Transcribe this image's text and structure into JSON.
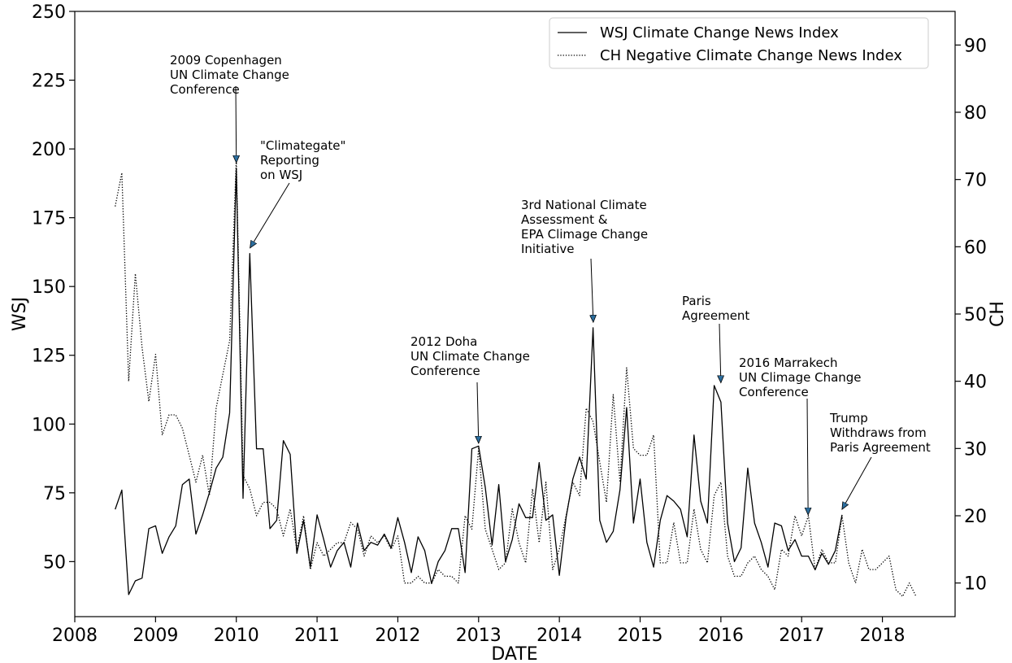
{
  "chart_data": {
    "type": "line",
    "xlabel": "DATE",
    "ylabel_left": "WSJ",
    "ylabel_right": "CH",
    "xlim": [
      2008.0,
      2018.9
    ],
    "ylim_left": [
      30,
      250
    ],
    "ylim_right": [
      5,
      95
    ],
    "x_ticks": [
      "2008",
      "2009",
      "2010",
      "2011",
      "2012",
      "2013",
      "2014",
      "2015",
      "2016",
      "2017",
      "2018"
    ],
    "y_left_ticks": [
      "50",
      "75",
      "100",
      "125",
      "150",
      "175",
      "200",
      "225",
      "250"
    ],
    "y_right_ticks": [
      "10",
      "20",
      "30",
      "40",
      "50",
      "60",
      "70",
      "80",
      "90"
    ],
    "grid": false,
    "legend_position": "top-right",
    "series": [
      {
        "name": "WSJ Climate Change News Index",
        "axis": "left",
        "style": "solid",
        "color": "#000000",
        "x": [
          2008.5,
          2008.583,
          2008.667,
          2008.75,
          2008.833,
          2008.917,
          2009.0,
          2009.083,
          2009.167,
          2009.25,
          2009.333,
          2009.417,
          2009.5,
          2009.583,
          2009.667,
          2009.75,
          2009.833,
          2009.917,
          2010.0,
          2010.083,
          2010.167,
          2010.25,
          2010.333,
          2010.417,
          2010.5,
          2010.583,
          2010.667,
          2010.75,
          2010.833,
          2010.917,
          2011.0,
          2011.083,
          2011.167,
          2011.25,
          2011.333,
          2011.417,
          2011.5,
          2011.583,
          2011.667,
          2011.75,
          2011.833,
          2011.917,
          2012.0,
          2012.083,
          2012.167,
          2012.25,
          2012.333,
          2012.417,
          2012.5,
          2012.583,
          2012.667,
          2012.75,
          2012.833,
          2012.917,
          2013.0,
          2013.083,
          2013.167,
          2013.25,
          2013.333,
          2013.417,
          2013.5,
          2013.583,
          2013.667,
          2013.75,
          2013.833,
          2013.917,
          2014.0,
          2014.083,
          2014.167,
          2014.25,
          2014.333,
          2014.417,
          2014.5,
          2014.583,
          2014.667,
          2014.75,
          2014.833,
          2014.917,
          2015.0,
          2015.083,
          2015.167,
          2015.25,
          2015.333,
          2015.417,
          2015.5,
          2015.583,
          2015.667,
          2015.75,
          2015.833,
          2015.917,
          2016.0,
          2016.083,
          2016.167,
          2016.25,
          2016.333,
          2016.417,
          2016.5,
          2016.583,
          2016.667,
          2016.75,
          2016.833,
          2016.917,
          2017.0,
          2017.083,
          2017.167,
          2017.25,
          2017.333,
          2017.417,
          2017.5
        ],
        "values": [
          69,
          76,
          38,
          43,
          44,
          62,
          63,
          53,
          59,
          63,
          78,
          80,
          60,
          67,
          75,
          84,
          88,
          104,
          193,
          73,
          162,
          91,
          91,
          62,
          65,
          94,
          89,
          53,
          65,
          48,
          67,
          58,
          48,
          54,
          57,
          48,
          64,
          54,
          57,
          56,
          60,
          55,
          66,
          57,
          46,
          59,
          54,
          42,
          50,
          54,
          62,
          62,
          46,
          91,
          92,
          77,
          56,
          78,
          50,
          58,
          71,
          66,
          66,
          86,
          65,
          67,
          45,
          66,
          80,
          88,
          80,
          135,
          65,
          57,
          61,
          76,
          106,
          64,
          80,
          57,
          48,
          65,
          74,
          72,
          69,
          59,
          96,
          72,
          64,
          114,
          108,
          64,
          50,
          55,
          84,
          64,
          57,
          48,
          64,
          63,
          54,
          58,
          52,
          52,
          47,
          53,
          49,
          54,
          67
        ]
      },
      {
        "name": "CH Negative Climate Change News Index",
        "axis": "right",
        "style": "dotted",
        "color": "#000000",
        "x": [
          2008.5,
          2008.583,
          2008.667,
          2008.75,
          2008.833,
          2008.917,
          2009.0,
          2009.083,
          2009.167,
          2009.25,
          2009.333,
          2009.417,
          2009.5,
          2009.583,
          2009.667,
          2009.75,
          2009.833,
          2009.917,
          2010.0,
          2010.083,
          2010.167,
          2010.25,
          2010.333,
          2010.417,
          2010.5,
          2010.583,
          2010.667,
          2010.75,
          2010.833,
          2010.917,
          2011.0,
          2011.083,
          2011.167,
          2011.25,
          2011.333,
          2011.417,
          2011.5,
          2011.583,
          2011.667,
          2011.75,
          2011.833,
          2011.917,
          2012.0,
          2012.083,
          2012.167,
          2012.25,
          2012.333,
          2012.417,
          2012.5,
          2012.583,
          2012.667,
          2012.75,
          2012.833,
          2012.917,
          2013.0,
          2013.083,
          2013.167,
          2013.25,
          2013.333,
          2013.417,
          2013.5,
          2013.583,
          2013.667,
          2013.75,
          2013.833,
          2013.917,
          2014.0,
          2014.083,
          2014.167,
          2014.25,
          2014.333,
          2014.417,
          2014.5,
          2014.583,
          2014.667,
          2014.75,
          2014.833,
          2014.917,
          2015.0,
          2015.083,
          2015.167,
          2015.25,
          2015.333,
          2015.417,
          2015.5,
          2015.583,
          2015.667,
          2015.75,
          2015.833,
          2015.917,
          2016.0,
          2016.083,
          2016.167,
          2016.25,
          2016.333,
          2016.417,
          2016.5,
          2016.583,
          2016.667,
          2016.75,
          2016.833,
          2016.917,
          2017.0,
          2017.083,
          2017.167,
          2017.25,
          2017.333,
          2017.417,
          2017.5,
          2017.583,
          2017.667,
          2017.75,
          2017.833,
          2017.917,
          2018.0,
          2018.083,
          2018.167,
          2018.25,
          2018.333,
          2018.417
        ],
        "values": [
          66,
          71,
          40,
          56,
          45,
          37,
          44,
          32,
          35,
          35,
          33,
          29,
          25,
          29,
          23,
          36,
          41,
          46,
          73,
          26,
          24,
          20,
          22,
          22,
          21,
          17,
          21,
          15,
          20,
          12,
          16,
          14,
          15,
          16,
          16,
          19,
          18,
          14,
          17,
          16,
          17,
          15,
          17,
          10,
          10,
          11,
          10,
          10,
          12,
          11,
          11,
          10,
          20,
          18,
          30,
          18,
          15,
          12,
          13,
          21,
          16,
          13,
          24,
          16,
          25,
          12,
          15,
          20,
          25,
          23,
          36,
          34,
          28,
          22,
          38,
          25,
          42,
          30,
          29,
          29,
          32,
          13,
          13,
          19,
          13,
          13,
          21,
          15,
          13,
          23,
          25,
          14,
          11,
          11,
          13,
          14,
          12,
          11,
          9,
          15,
          14,
          20,
          17,
          20,
          12,
          15,
          13,
          13,
          20,
          13,
          10,
          15,
          12,
          12,
          13,
          14,
          9,
          8,
          10,
          8
        ]
      }
    ],
    "annotations": [
      {
        "lines": [
          "2009 Copenhagen",
          "UN Climate Change",
          "Conference"
        ],
        "x": 2010.0,
        "y": 195
      },
      {
        "lines": [
          "\"Climategate\"",
          "Reporting",
          "on WSJ"
        ],
        "x": 2010.17,
        "y": 164
      },
      {
        "lines": [
          "2012 Doha",
          "UN Climate Change",
          "Conference"
        ],
        "x": 2013.0,
        "y": 93
      },
      {
        "lines": [
          "3rd National Climate",
          "Assessment &",
          "EPA Climage Change",
          "Initiative"
        ],
        "x": 2014.42,
        "y": 137
      },
      {
        "lines": [
          "Paris",
          "Agreement"
        ],
        "x": 2016.0,
        "y": 115
      },
      {
        "lines": [
          "2016 Marrakech",
          "UN Climage Change",
          "Conference"
        ],
        "x": 2017.08,
        "y": 67
      },
      {
        "lines": [
          "Trump",
          "Withdraws from",
          "Paris Agreement"
        ],
        "x": 2017.5,
        "y": 69
      }
    ]
  }
}
